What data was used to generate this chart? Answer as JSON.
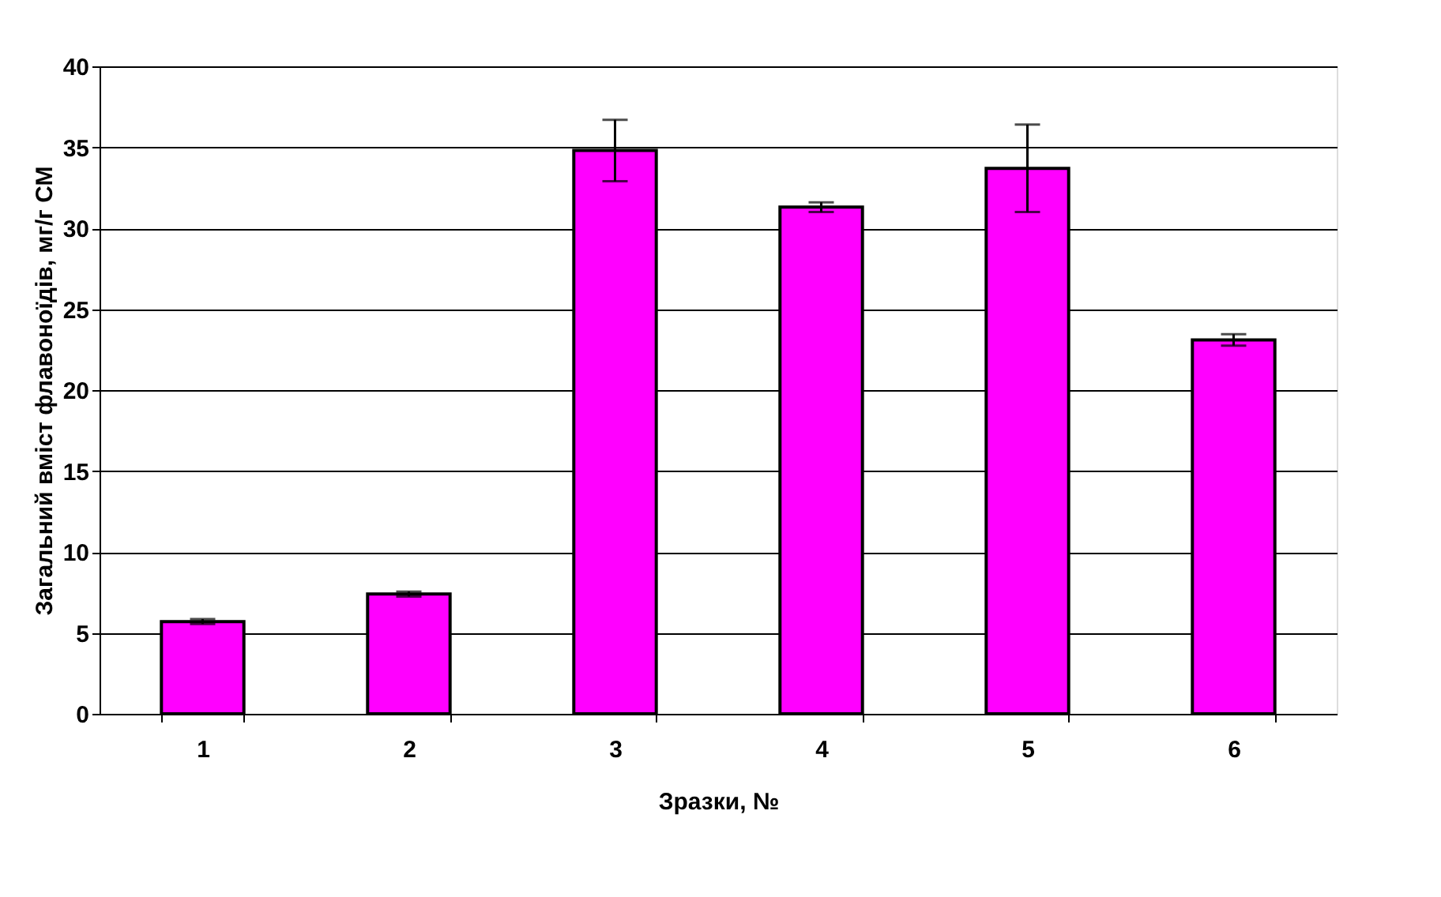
{
  "chart_data": {
    "type": "bar",
    "xlabel": "Зразки, №",
    "ylabel": "Загальний вміст флавоноїдів, мг/г СМ",
    "categories": [
      "1",
      "2",
      "3",
      "4",
      "5",
      "6"
    ],
    "values": [
      5.7,
      7.4,
      34.8,
      31.3,
      33.7,
      23.1
    ],
    "errors": [
      0.15,
      0.15,
      1.9,
      0.3,
      2.7,
      0.35
    ],
    "color": "#ff00ff",
    "ylim": [
      0,
      40
    ],
    "yticks": [
      0,
      5,
      10,
      15,
      20,
      25,
      30,
      35,
      40
    ],
    "grid": "y"
  }
}
